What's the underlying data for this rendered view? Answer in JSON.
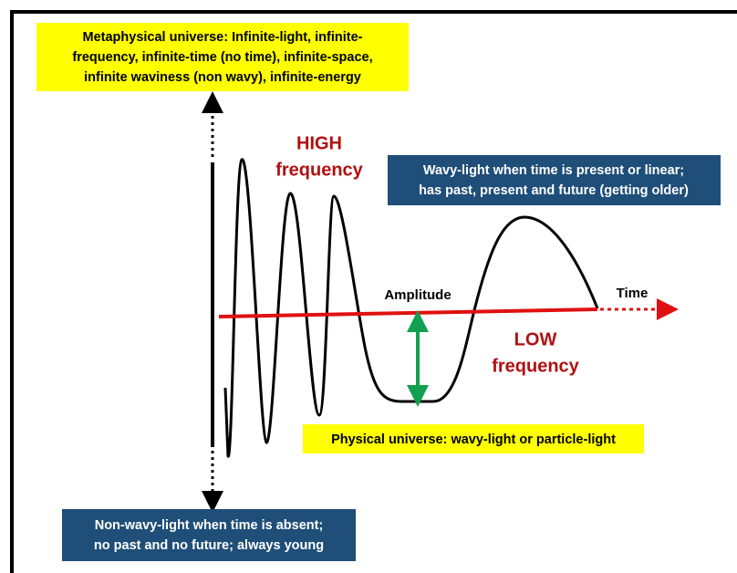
{
  "metaphysical_box": {
    "lines": [
      "Metaphysical universe: Infinite-light, infinite-",
      "frequency, infinite-time (no time), infinite-space,",
      "infinite waviness (non wavy), infinite-energy"
    ]
  },
  "high_label": {
    "lines": [
      "HIGH",
      "frequency"
    ]
  },
  "wavy_box": {
    "lines": [
      "Wavy-light when time is present or linear;",
      "has past, present and future (getting older)"
    ]
  },
  "amplitude_label": "Amplitude",
  "time_label": "Time",
  "low_label": {
    "lines": [
      "LOW",
      "frequency"
    ]
  },
  "physical_box": {
    "lines": [
      "Physical universe: wavy-light or particle-light"
    ]
  },
  "non_wavy_box": {
    "lines": [
      "Non-wavy-light when time is absent;",
      "no past and no future; always young"
    ]
  }
}
